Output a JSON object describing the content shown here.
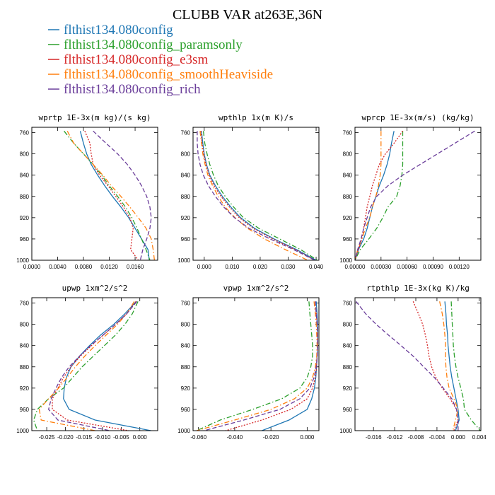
{
  "figure": {
    "title": "CLUBB VAR at263E,36N"
  },
  "legend": [
    {
      "label": "flthist134.080config",
      "color": "#1f77b4",
      "dash": "solid"
    },
    {
      "label": "flthist134.080config_paramsonly",
      "color": "#2ca02c",
      "dash": "dashdot"
    },
    {
      "label": "flthist134.080config_e3sm",
      "color": "#d62728",
      "dash": "dot"
    },
    {
      "label": "flthist134.080config_smoothHeaviside",
      "color": "#ff7f0e",
      "dash": "dashdot"
    },
    {
      "label": "flthist134.080config_rich",
      "color": "#6a3d9a",
      "dash": "dash"
    }
  ],
  "chart_data": [
    {
      "type": "line",
      "title": "wprtp  1E-3x(m kg)/(s kg)",
      "xlim": [
        0.0,
        0.0195
      ],
      "ylim": [
        1000,
        750
      ],
      "xticks": [
        0.0,
        0.004,
        0.008,
        0.012,
        0.016
      ],
      "xticklabels": [
        "0.0000",
        "0.0040",
        "0.0080",
        "0.0120",
        "0.0160"
      ],
      "yticks": [
        760,
        800,
        840,
        880,
        920,
        960,
        1000
      ],
      "y": [
        757,
        780,
        800,
        820,
        840,
        860,
        880,
        900,
        920,
        940,
        960,
        980,
        1000
      ],
      "series": [
        {
          "values": [
            0.0075,
            0.008,
            0.0085,
            0.0092,
            0.0102,
            0.0113,
            0.0125,
            0.0138,
            0.015,
            0.016,
            0.017,
            0.018,
            0.0182
          ]
        },
        {
          "values": [
            0.005,
            0.0065,
            0.008,
            0.0095,
            0.0108,
            0.012,
            0.0133,
            0.0145,
            0.0155,
            0.0163,
            0.017,
            0.0177,
            0.0183
          ]
        },
        {
          "values": [
            0.0082,
            0.009,
            0.0092,
            0.0095,
            0.0105,
            0.0118,
            0.013,
            0.0142,
            0.0152,
            0.0157,
            0.0155,
            0.0153,
            0.0165
          ]
        },
        {
          "values": [
            0.0055,
            0.0065,
            0.008,
            0.0095,
            0.011,
            0.0123,
            0.0138,
            0.0152,
            0.0165,
            0.0177,
            0.0185,
            0.0188,
            0.019
          ]
        },
        {
          "values": [
            0.0095,
            0.0115,
            0.0133,
            0.0148,
            0.016,
            0.017,
            0.0178,
            0.0183,
            0.0185,
            0.0183,
            0.0178,
            0.0172,
            0.0168
          ]
        }
      ]
    },
    {
      "type": "line",
      "title": "wpthlp  1x(m K)/s",
      "xlim": [
        -0.004,
        0.041
      ],
      "ylim": [
        1000,
        750
      ],
      "xticks": [
        0.0,
        0.01,
        0.02,
        0.03,
        0.04
      ],
      "xticklabels": [
        "0.000",
        "0.010",
        "0.020",
        "0.030",
        "0.040"
      ],
      "yticks": [
        760,
        800,
        840,
        880,
        920,
        960,
        1000
      ],
      "y": [
        757,
        780,
        800,
        820,
        840,
        860,
        880,
        900,
        920,
        940,
        960,
        980,
        1000
      ],
      "series": [
        {
          "values": [
            -0.001,
            -0.0005,
            0.0,
            0.0008,
            0.002,
            0.004,
            0.0065,
            0.0095,
            0.013,
            0.018,
            0.025,
            0.033,
            0.04
          ]
        },
        {
          "values": [
            -0.0003,
            0.0002,
            0.001,
            0.002,
            0.0033,
            0.005,
            0.0075,
            0.0105,
            0.014,
            0.0195,
            0.027,
            0.0345,
            0.0405
          ]
        },
        {
          "values": [
            -0.0012,
            -0.0008,
            -0.0002,
            0.0006,
            0.0018,
            0.0035,
            0.006,
            0.009,
            0.0125,
            0.0175,
            0.0245,
            0.0325,
            0.0395
          ]
        },
        {
          "values": [
            -0.0015,
            -0.001,
            -0.0005,
            0.0003,
            0.0013,
            0.003,
            0.005,
            0.0075,
            0.011,
            0.0155,
            0.0215,
            0.029,
            0.037
          ]
        },
        {
          "values": [
            -0.0025,
            -0.0025,
            -0.0022,
            -0.0015,
            -0.0003,
            0.0015,
            0.004,
            0.007,
            0.0108,
            0.016,
            0.0235,
            0.032,
            0.0395
          ]
        }
      ]
    },
    {
      "type": "line",
      "title": "wprcp  1E-3x(m/s) (kg/kg)",
      "xlim": [
        0.0,
        0.00145
      ],
      "ylim": [
        1000,
        750
      ],
      "xticks": [
        0.0,
        0.0003,
        0.0006,
        0.0009,
        0.0012
      ],
      "xticklabels": [
        "0.00000",
        "0.00030",
        "0.00060",
        "0.00090",
        "0.00120"
      ],
      "yticks": [
        760,
        800,
        840,
        880,
        920,
        960,
        1000
      ],
      "y": [
        757,
        780,
        800,
        820,
        840,
        860,
        880,
        900,
        920,
        940,
        960,
        980,
        1000
      ],
      "series": [
        {
          "values": [
            0.00045,
            0.00042,
            0.0004,
            0.00037,
            0.00033,
            0.00028,
            0.00024,
            0.0002,
            0.00017,
            0.00014,
            0.0001,
            4e-05,
            0.0
          ]
        },
        {
          "values": [
            0.00055,
            0.00055,
            0.00055,
            0.00055,
            0.00054,
            0.00052,
            0.00048,
            0.00038,
            0.00032,
            0.00025,
            0.00016,
            6e-05,
            0.0
          ]
        },
        {
          "values": [
            0.00055,
            0.00045,
            0.00035,
            0.00028,
            0.00024,
            0.0002,
            0.00017,
            0.00014,
            0.00012,
            0.0001,
            8e-05,
            4e-05,
            0.0
          ]
        },
        {
          "values": [
            0.0003,
            0.0003,
            0.0003,
            0.0003,
            0.00029,
            0.00027,
            0.00024,
            0.0002,
            0.00017,
            0.00012,
            8e-05,
            3e-05,
            0.0
          ]
        },
        {
          "values": [
            0.00138,
            0.00115,
            0.00095,
            0.00075,
            0.00055,
            0.00038,
            0.00025,
            0.00018,
            0.00014,
            0.0001,
            7e-05,
            3e-05,
            0.0
          ]
        }
      ]
    },
    {
      "type": "line",
      "title": "upwp  1xm^2/s^2",
      "xlim": [
        -0.029,
        0.0048
      ],
      "ylim": [
        1000,
        750
      ],
      "xticks": [
        -0.025,
        -0.02,
        -0.015,
        -0.01,
        -0.005,
        0.0
      ],
      "xticklabels": [
        "-0.025",
        "-0.020",
        "-0.015",
        "-0.010",
        "-0.005",
        "0.000"
      ],
      "yticks": [
        760,
        800,
        840,
        880,
        920,
        960,
        1000
      ],
      "y": [
        757,
        780,
        800,
        820,
        840,
        860,
        880,
        900,
        920,
        940,
        960,
        980,
        1000
      ],
      "series": [
        {
          "values": [
            -0.001,
            -0.004,
            -0.007,
            -0.0105,
            -0.0135,
            -0.0162,
            -0.0185,
            -0.0197,
            -0.0203,
            -0.0205,
            -0.019,
            -0.012,
            0.003
          ]
        },
        {
          "values": [
            -0.0005,
            -0.002,
            -0.004,
            -0.0065,
            -0.0095,
            -0.0125,
            -0.0155,
            -0.018,
            -0.0205,
            -0.0245,
            -0.0275,
            -0.0285,
            -0.0275
          ]
        },
        {
          "values": [
            -0.001,
            -0.0035,
            -0.0065,
            -0.0098,
            -0.013,
            -0.016,
            -0.0185,
            -0.0205,
            -0.022,
            -0.0235,
            -0.0235,
            -0.0195,
            -0.003
          ]
        },
        {
          "values": [
            -0.0015,
            -0.0035,
            -0.006,
            -0.009,
            -0.012,
            -0.0148,
            -0.0173,
            -0.0195,
            -0.0218,
            -0.0245,
            -0.027,
            -0.0265,
            -0.012
          ]
        },
        {
          "values": [
            -0.0008,
            -0.0035,
            -0.0065,
            -0.0098,
            -0.0132,
            -0.0162,
            -0.019,
            -0.021,
            -0.0225,
            -0.0238,
            -0.0245,
            -0.022,
            -0.008
          ]
        }
      ]
    },
    {
      "type": "line",
      "title": "vpwp  1xm^2/s^2",
      "xlim": [
        -0.063,
        0.0065
      ],
      "ylim": [
        1000,
        750
      ],
      "xticks": [
        -0.06,
        -0.04,
        -0.02,
        0.0
      ],
      "xticklabels": [
        "-0.060",
        "-0.040",
        "-0.020",
        "0.000"
      ],
      "yticks": [
        760,
        800,
        840,
        880,
        920,
        960,
        1000
      ],
      "y": [
        757,
        780,
        800,
        820,
        840,
        860,
        880,
        900,
        920,
        940,
        960,
        980,
        1000
      ],
      "series": [
        {
          "values": [
            0.005,
            0.0055,
            0.0058,
            0.0058,
            0.0057,
            0.0055,
            0.0052,
            0.0048,
            0.004,
            0.0025,
            0.0,
            -0.01,
            -0.025
          ]
        },
        {
          "values": [
            0.001,
            0.0015,
            0.002,
            0.0025,
            0.003,
            0.003,
            0.002,
            0.0,
            -0.004,
            -0.014,
            -0.03,
            -0.048,
            -0.061
          ]
        },
        {
          "values": [
            0.0045,
            0.005,
            0.0055,
            0.0058,
            0.0057,
            0.0055,
            0.0052,
            0.0045,
            0.003,
            0.0,
            -0.009,
            -0.025,
            -0.045
          ]
        },
        {
          "values": [
            0.0038,
            0.0045,
            0.005,
            0.0053,
            0.0055,
            0.0053,
            0.0045,
            0.003,
            0.0,
            -0.007,
            -0.02,
            -0.04,
            -0.061
          ]
        },
        {
          "values": [
            0.0045,
            0.005,
            0.0055,
            0.0058,
            0.0058,
            0.0056,
            0.005,
            0.0038,
            0.0015,
            -0.004,
            -0.015,
            -0.035,
            -0.057
          ]
        }
      ]
    },
    {
      "type": "line",
      "title": "rtpthlp  1E-3x(kg K)/kg",
      "xlim": [
        -0.0195,
        0.0043
      ],
      "ylim": [
        1000,
        750
      ],
      "xticks": [
        -0.016,
        -0.012,
        -0.008,
        -0.004,
        0.0,
        0.004
      ],
      "xticklabels": [
        "-0.016",
        "-0.012",
        "-0.008",
        "-0.004",
        "0.000",
        "0.004"
      ],
      "yticks": [
        760,
        800,
        840,
        880,
        920,
        960,
        1000
      ],
      "y": [
        757,
        780,
        800,
        820,
        840,
        860,
        880,
        900,
        920,
        940,
        960,
        980,
        1000
      ],
      "series": [
        {
          "values": [
            -0.0025,
            -0.0023,
            -0.0022,
            -0.002,
            -0.0019,
            -0.0017,
            -0.0015,
            -0.0012,
            -0.0008,
            -0.0004,
            0.0,
            0.0002,
            -0.0005
          ]
        },
        {
          "values": [
            -0.0013,
            -0.0012,
            -0.0011,
            -0.001,
            -0.0009,
            -0.0007,
            -0.0004,
            0.0,
            0.0005,
            0.001,
            0.0012,
            0.0025,
            0.0042
          ]
        },
        {
          "values": [
            -0.0085,
            -0.0075,
            -0.0067,
            -0.0062,
            -0.0058,
            -0.0055,
            -0.005,
            -0.0042,
            -0.003,
            -0.0015,
            -0.0003,
            0.0,
            -0.0008
          ]
        },
        {
          "values": [
            -0.0035,
            -0.003,
            -0.0027,
            -0.0025,
            -0.0024,
            -0.0024,
            -0.0023,
            -0.0021,
            -0.0017,
            -0.0008,
            0.0,
            -0.0005,
            -0.001
          ]
        },
        {
          "values": [
            -0.0193,
            -0.0175,
            -0.0155,
            -0.0132,
            -0.0108,
            -0.0085,
            -0.0065,
            -0.0045,
            -0.0028,
            -0.0012,
            -0.0003,
            0.0,
            0.0
          ]
        }
      ]
    }
  ]
}
